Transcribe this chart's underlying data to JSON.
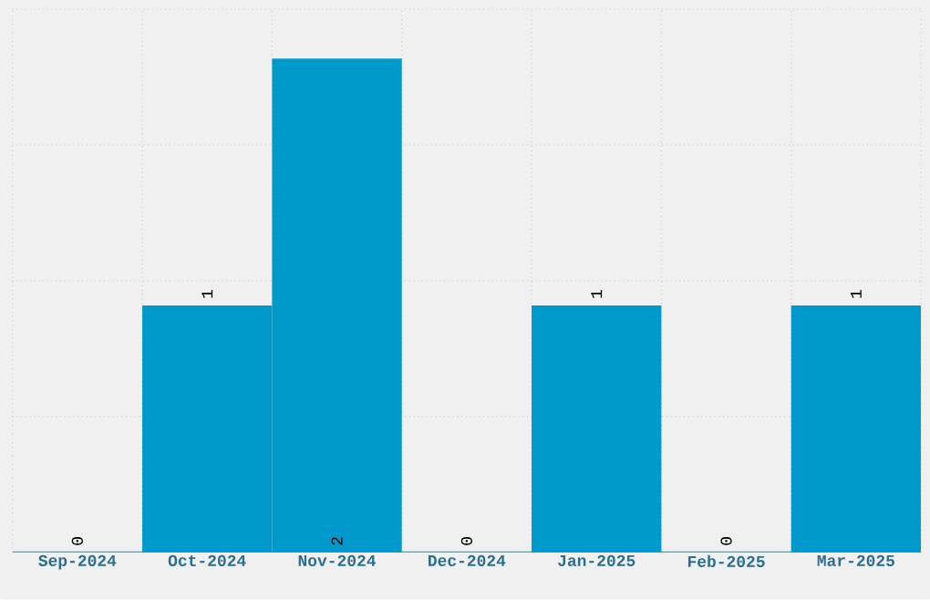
{
  "chart_data": {
    "type": "bar",
    "categories": [
      "Sep-2024",
      "Oct-2024",
      "Nov-2024",
      "Dec-2024",
      "Jan-2025",
      "Feb-2025",
      "Mar-2025"
    ],
    "values": [
      0,
      1,
      2,
      0,
      1,
      0,
      1
    ],
    "color": "#0099cc",
    "ylim": [
      0,
      2.2
    ],
    "yticks": [
      {
        "value": 0.55,
        "label": null
      },
      {
        "value": 1.1,
        "label": null
      },
      {
        "value": 1.65,
        "label": null
      },
      {
        "value": 2.2,
        "label": null
      }
    ],
    "tick_labels": "x",
    "data_labels": true,
    "grid": true
  }
}
